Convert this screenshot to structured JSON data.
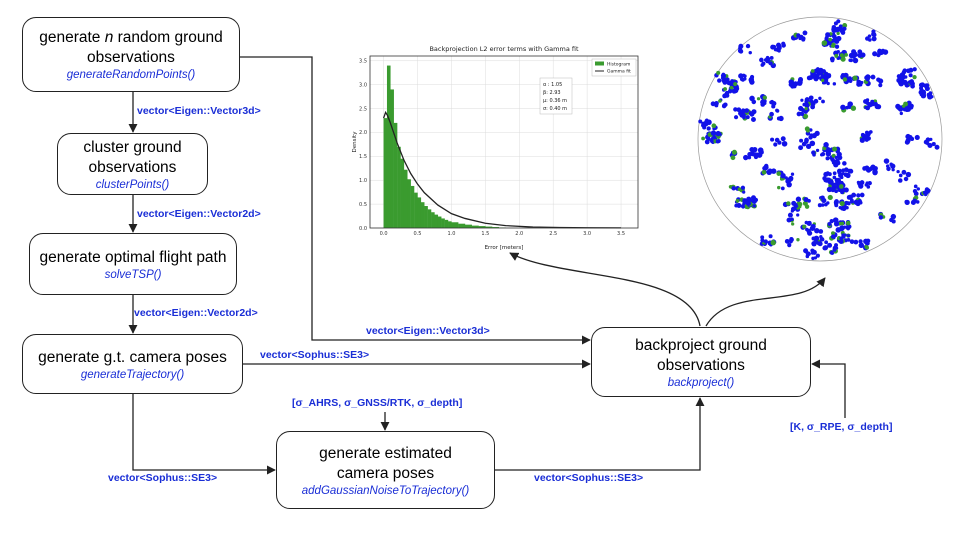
{
  "nodes": {
    "generate": {
      "title_pre": "generate ",
      "title_var": "n",
      "title_post": " random ground observations",
      "func": "generateRandomPoints()"
    },
    "cluster": {
      "title": "cluster ground observations",
      "func": "clusterPoints()"
    },
    "flight": {
      "title": "generate optimal flight path",
      "func": "solveTSP()"
    },
    "gt": {
      "title": "generate g.t. camera poses",
      "func": "generateTrajectory()"
    },
    "estimated": {
      "title": "generate estimated camera poses",
      "func": "addGaussianNoiseToTrajectory()"
    },
    "backproject": {
      "title": "backproject ground observations",
      "func": "backproject()"
    }
  },
  "edge_labels": {
    "gen_to_cluster": "vector<Eigen::Vector3d>",
    "cluster_to_flight": "vector<Eigen::Vector2d>",
    "flight_to_gt": "vector<Eigen::Vector2d>",
    "gen_to_backproject": "vector<Eigen::Vector3d>",
    "gt_to_backproject": "vector<Sophus::SE3>",
    "gt_to_estimated": "vector<Sophus::SE3>",
    "estimated_to_backproject": "vector<Sophus::SE3>",
    "noise_params": "[σ_AHRS, σ_GNSS/RTK, σ_depth]",
    "camera_params": "[K, σ_RPE, σ_depth]"
  },
  "colors": {
    "label_blue": "#1a2ed6",
    "hist_green": "#3a9b2f",
    "fit_line": "#222222",
    "point_blue": "#1212e8"
  },
  "chart_data": {
    "type": "bar",
    "title": "Backprojection L2 error terms with Gamma fit",
    "xlabel": "Error [meters]",
    "ylabel": "Density",
    "xlim": [
      -0.2,
      3.75
    ],
    "ylim": [
      0,
      3.6
    ],
    "xticks": [
      "0.0",
      "0.5",
      "1.0",
      "1.5",
      "2.0",
      "2.5",
      "3.0",
      "3.5"
    ],
    "yticks": [
      "0.0",
      "0.5",
      "1.0",
      "1.5",
      "2.0",
      "2.5",
      "3.0",
      "3.5"
    ],
    "legend": [
      "Histogram",
      "Gamma fit"
    ],
    "legend_position": "top-right",
    "stats": [
      "α : 1.05",
      "β: 2.93",
      "μ: 0.36 m",
      "σ: 0.40 m"
    ],
    "series": [
      {
        "name": "Histogram",
        "x": [
          0.0,
          0.05,
          0.1,
          0.15,
          0.2,
          0.25,
          0.3,
          0.35,
          0.4,
          0.45,
          0.5,
          0.55,
          0.6,
          0.65,
          0.7,
          0.75,
          0.8,
          0.85,
          0.9,
          0.95,
          1.0,
          1.1,
          1.2,
          1.3,
          1.4,
          1.5,
          1.6,
          1.7
        ],
        "values": [
          2.3,
          3.4,
          2.9,
          2.2,
          1.7,
          1.45,
          1.22,
          1.02,
          0.88,
          0.74,
          0.64,
          0.54,
          0.46,
          0.39,
          0.33,
          0.28,
          0.24,
          0.2,
          0.17,
          0.14,
          0.12,
          0.09,
          0.07,
          0.05,
          0.04,
          0.03,
          0.02,
          0.01
        ]
      },
      {
        "name": "Gamma fit",
        "x": [
          0.0,
          0.03,
          0.06,
          0.1,
          0.2,
          0.3,
          0.4,
          0.5,
          0.6,
          0.8,
          1.0,
          1.2,
          1.5,
          1.8,
          2.2,
          2.6,
          3.0,
          3.5
        ],
        "values": [
          2.3,
          2.42,
          2.35,
          2.2,
          1.78,
          1.42,
          1.14,
          0.92,
          0.74,
          0.48,
          0.3,
          0.2,
          0.1,
          0.05,
          0.02,
          0.01,
          0.005,
          0.002
        ]
      }
    ]
  }
}
